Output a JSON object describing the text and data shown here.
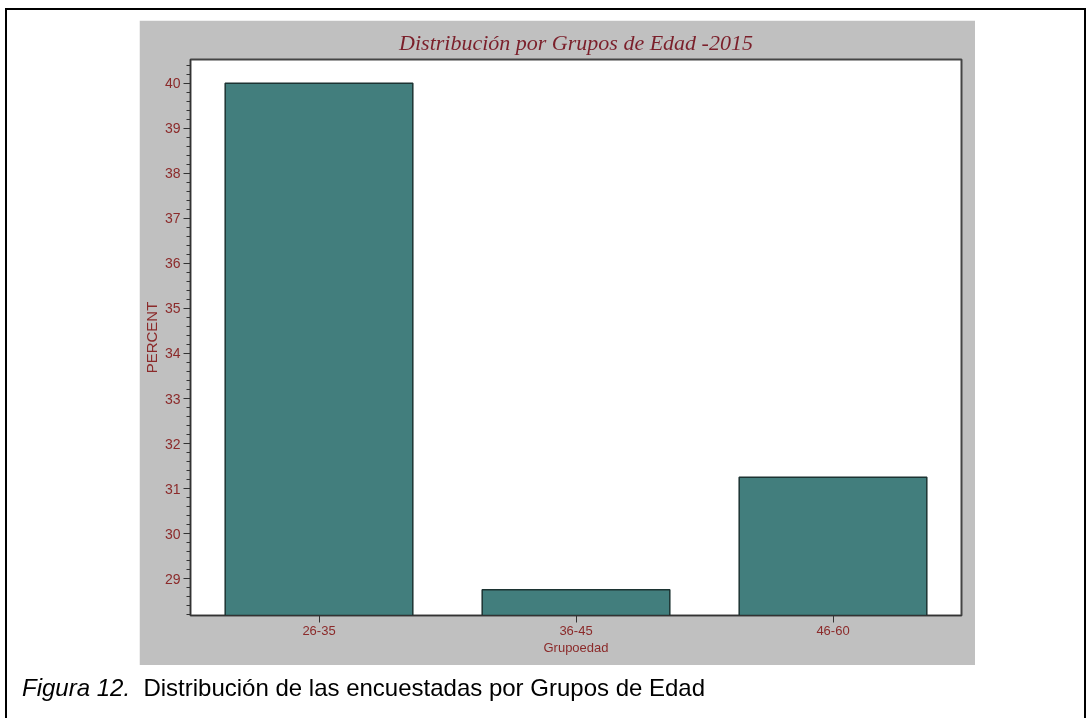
{
  "chart_data": {
    "type": "bar",
    "title": "Distribución por Grupos de Edad -2015",
    "xlabel": "Grupoedad",
    "ylabel": "PERCENT",
    "categories": [
      "26-35",
      "36-45",
      "46-60"
    ],
    "values": [
      40.0,
      28.75,
      31.25
    ],
    "color": "#427e7d",
    "ylim": [
      28.18,
      40.53
    ],
    "yticks": [
      29,
      30,
      31,
      32,
      33,
      34,
      35,
      36,
      37,
      38,
      39,
      40
    ],
    "grid": false,
    "annotations": [
      "Figura 12.",
      "Distribución de las encuestadas por Grupos de Edad"
    ]
  }
}
